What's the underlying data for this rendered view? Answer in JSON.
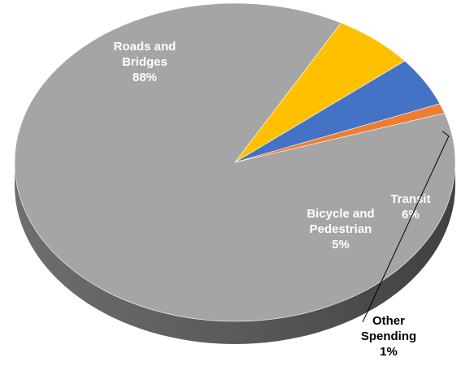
{
  "chart_data": {
    "type": "pie",
    "title": "",
    "slices": [
      {
        "label_lines": [
          "Roads and",
          "Bridges",
          "88%"
        ],
        "value": 88,
        "color": "#a5a5a5"
      },
      {
        "label_lines": [
          "Transit",
          "6%"
        ],
        "value": 6,
        "color": "#ffc000"
      },
      {
        "label_lines": [
          "Bicycle and",
          "Pedestrian",
          "5%"
        ],
        "value": 5,
        "color": "#4472c4"
      },
      {
        "label_lines": [
          "Other",
          "Spending",
          "1%"
        ],
        "value": 1,
        "color": "#ed7d31"
      }
    ],
    "legend": "none",
    "style": "3d"
  }
}
